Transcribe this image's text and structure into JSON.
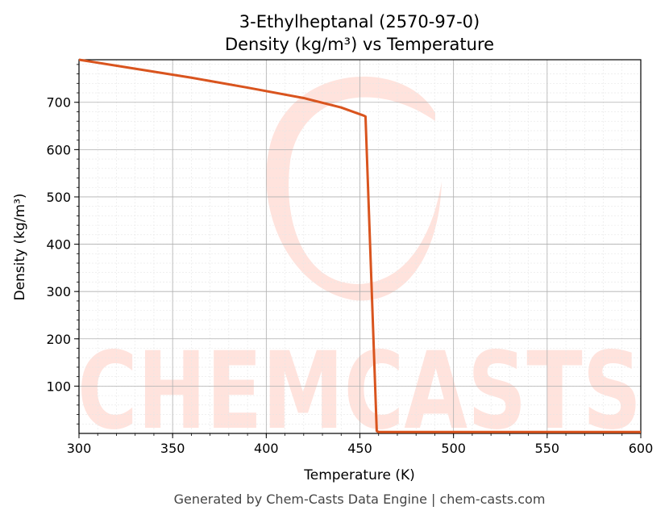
{
  "figure": {
    "title_line1": "3-Ethylheptanal (2570-97-0)",
    "title_line2": "Density (kg/m³) vs Temperature",
    "footer": "Generated by Chem-Casts Data Engine | chem-casts.com",
    "watermark_text": "CHEMCASTS",
    "watermark_color": "#ffd9d2"
  },
  "chart_data": {
    "type": "line",
    "title": "3-Ethylheptanal (2570-97-0)\nDensity (kg/m³) vs Temperature",
    "xlabel": "Temperature (K)",
    "ylabel": "Density (kg/m³)",
    "xlim": [
      300,
      600
    ],
    "ylim": [
      0,
      790
    ],
    "xticks": [
      300,
      350,
      400,
      450,
      500,
      550,
      600
    ],
    "yticks": [
      100,
      200,
      300,
      400,
      500,
      600,
      700
    ],
    "grid": true,
    "legend": "none",
    "series": [
      {
        "color": "#d9541e",
        "x": [
          300,
          330,
          360,
          390,
          420,
          440,
          452,
          453,
          459,
          460,
          500,
          550,
          600
        ],
        "y": [
          790,
          771,
          752,
          731,
          709,
          689,
          672,
          670,
          5,
          3,
          3,
          3,
          3
        ]
      }
    ]
  }
}
